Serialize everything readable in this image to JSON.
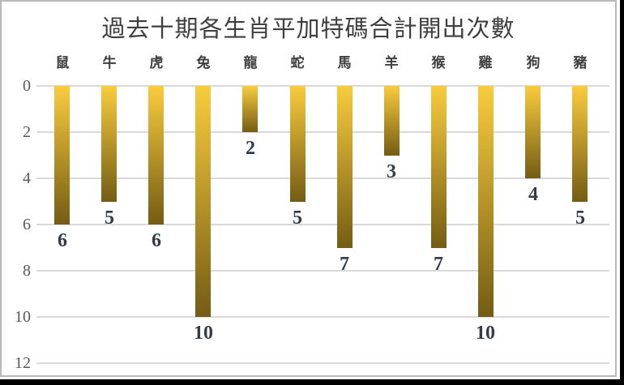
{
  "window": {
    "frame_border_color": "#B9B9B9",
    "edge_color": "#000000",
    "background": "#FFFFFF"
  },
  "chart_data": {
    "type": "bar",
    "orientation": "vertical-inverted-axis",
    "title": "過去十期各生肖平加特碼合計開出次數",
    "categories": [
      "鼠",
      "牛",
      "虎",
      "兔",
      "龍",
      "蛇",
      "馬",
      "羊",
      "猴",
      "雞",
      "狗",
      "豬"
    ],
    "values": [
      6,
      5,
      6,
      10,
      2,
      5,
      7,
      3,
      7,
      10,
      4,
      5
    ],
    "value_labels": [
      "6",
      "5",
      "6",
      "10",
      "2",
      "5",
      "7",
      "3",
      "7",
      "10",
      "4",
      "5"
    ],
    "y_ticks": [
      "0",
      "2",
      "4",
      "6",
      "8",
      "10",
      "12"
    ],
    "ylim": [
      0,
      12
    ],
    "xlabel": "",
    "ylabel": "",
    "grid": true,
    "legend_position": "none",
    "colors": {
      "bar_gradient_top": "#F9CC3D",
      "bar_gradient_bottom": "#745C14",
      "gridline": "#D9D9D9",
      "title_text": "#3F3F3F",
      "category_text": "#3F3F3F",
      "tick_text": "#595959",
      "value_label_text": "#333C47"
    }
  }
}
